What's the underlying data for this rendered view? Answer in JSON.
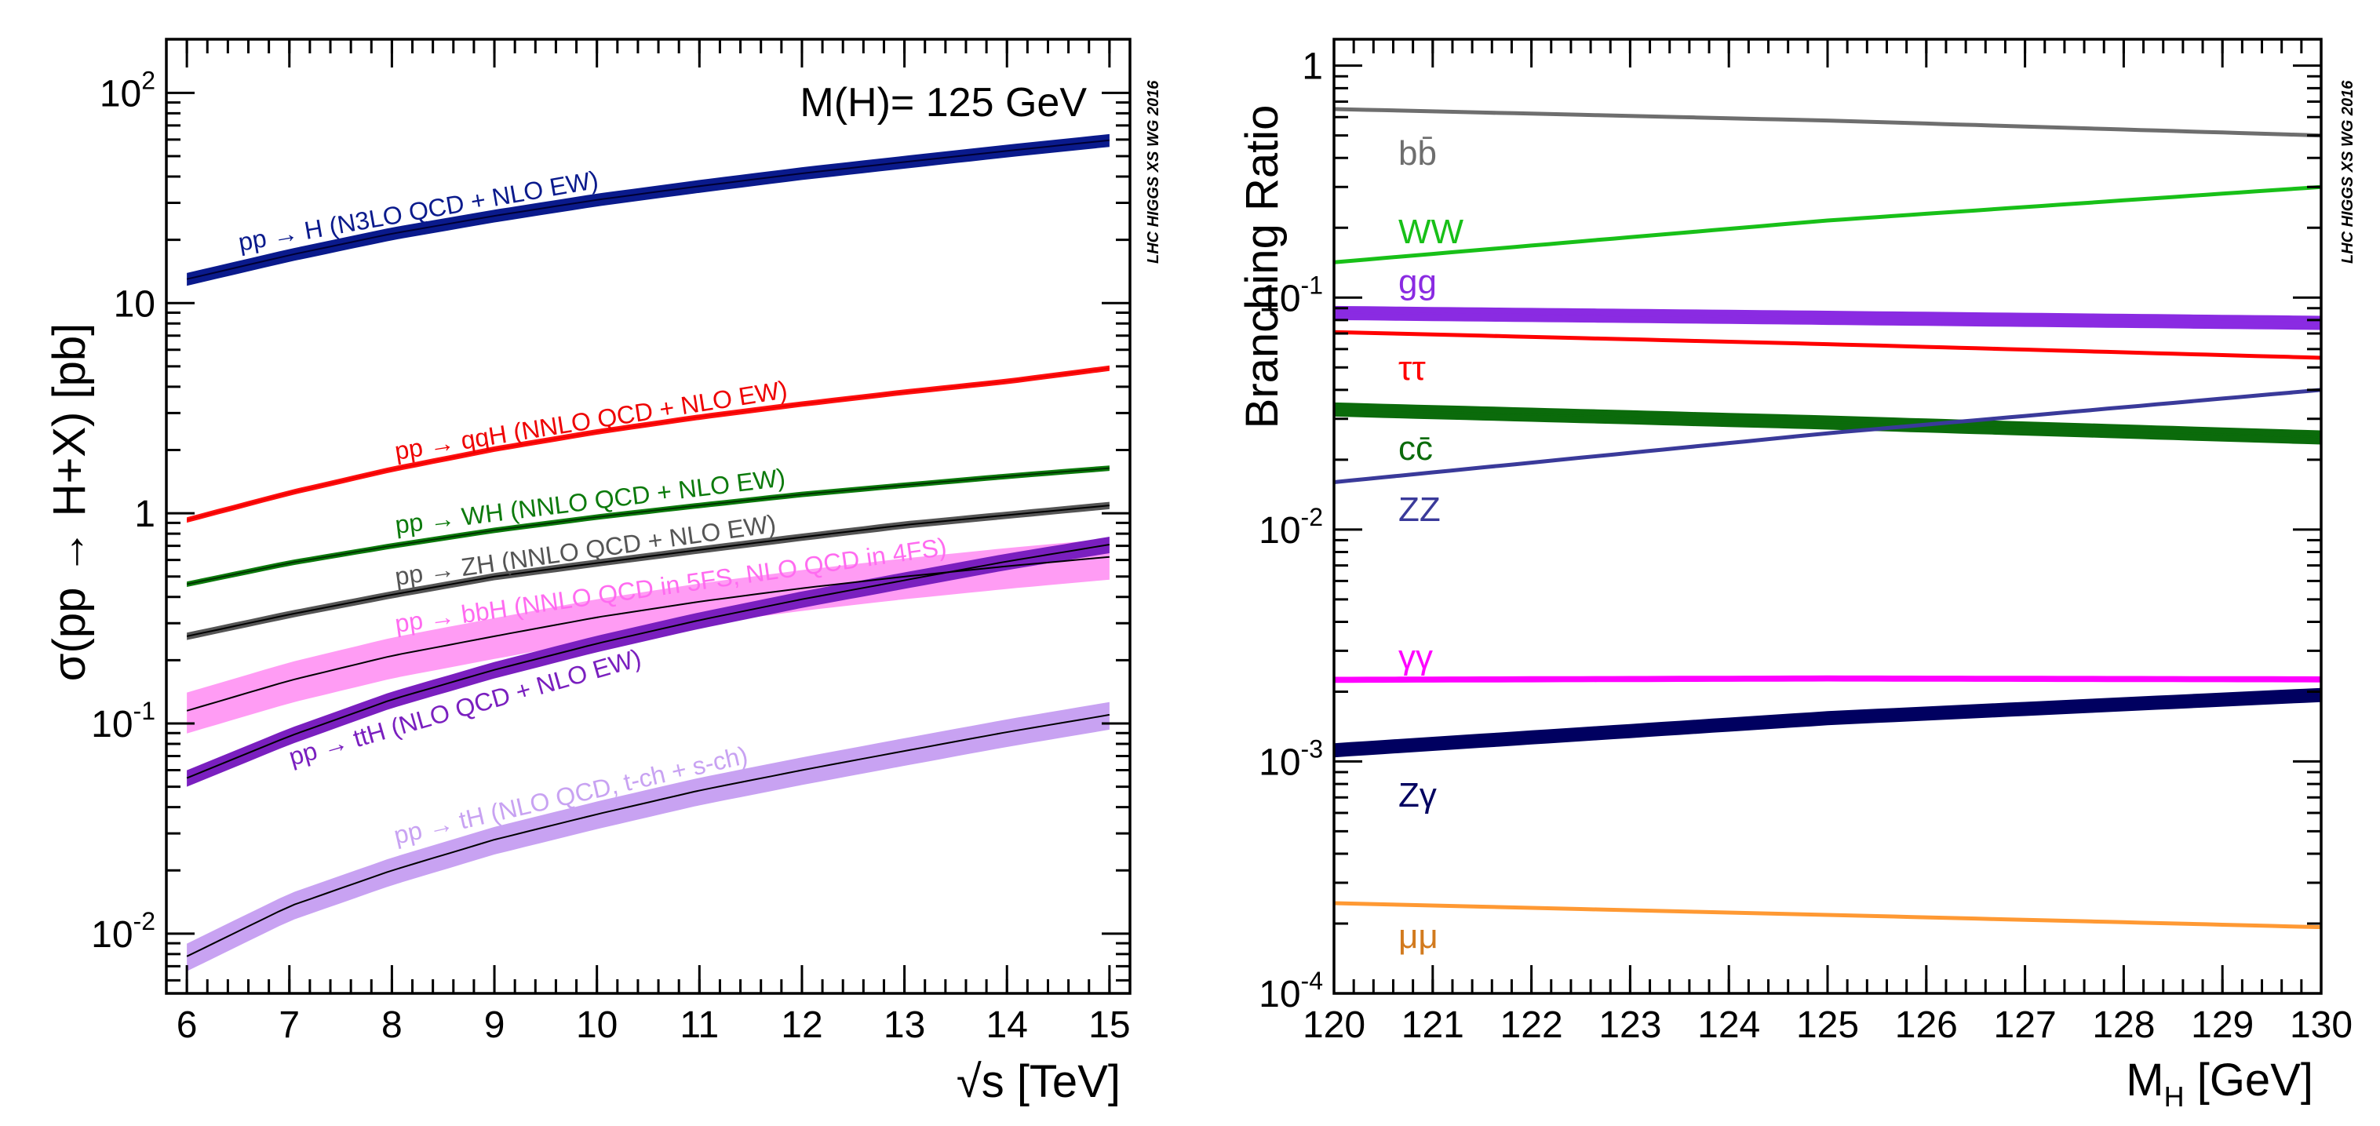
{
  "chart_data": [
    {
      "type": "line",
      "title": "M(H)= 125 GeV",
      "watermark": "LHC HIGGS XS WG 2016",
      "xlabel": "√s [TeV]",
      "ylabel": "σ(pp → H+X) [pb]",
      "yscale": "log",
      "xlim": [
        5.8,
        15.2
      ],
      "ylim": [
        0.0052,
        180
      ],
      "x_ticks": [
        "6",
        "7",
        "8",
        "9",
        "10",
        "11",
        "12",
        "13",
        "14",
        "15"
      ],
      "y_ticks": [
        {
          "base": "10",
          "exp": "2"
        },
        {
          "base": "10",
          "exp": ""
        },
        {
          "base": "1",
          "exp": ""
        },
        {
          "base": "10",
          "exp": "-1"
        },
        {
          "base": "10",
          "exp": "-2"
        }
      ],
      "series": [
        {
          "name": "pp → H (N3LO QCD + NLO EW)",
          "color": "#0a1a8c",
          "line_color": "#000033",
          "x": [
            6,
            7,
            8,
            9,
            10,
            11,
            12,
            13,
            14,
            15
          ],
          "values": [
            13.0,
            16.9,
            21.4,
            26.0,
            31.0,
            36.0,
            41.4,
            46.9,
            53.0,
            59.5
          ],
          "rel_band": 0.07
        },
        {
          "name": "pp → qqH (NNLO QCD + NLO EW)",
          "color": "#ff1010",
          "line_color": "#ee0000",
          "x": [
            6,
            7,
            8,
            9,
            10,
            11,
            12,
            13,
            14,
            15
          ],
          "values": [
            0.93,
            1.25,
            1.62,
            2.02,
            2.44,
            2.87,
            3.31,
            3.77,
            4.24,
            4.9
          ],
          "rel_band": 0.03
        },
        {
          "name": "pp → WH (NNLO QCD + NLO EW)",
          "color": "#0c7a0c",
          "line_color": "#003300",
          "x": [
            6,
            7,
            8,
            9,
            10,
            11,
            12,
            13,
            14,
            15
          ],
          "values": [
            0.46,
            0.58,
            0.7,
            0.83,
            0.96,
            1.09,
            1.23,
            1.36,
            1.5,
            1.64
          ],
          "rel_band": 0.03
        },
        {
          "name": "pp → ZH (NNLO QCD + NLO EW)",
          "color": "#555555",
          "line_color": "#000000",
          "x": [
            6,
            7,
            8,
            9,
            10,
            11,
            12,
            13,
            14,
            15
          ],
          "values": [
            0.26,
            0.33,
            0.41,
            0.5,
            0.58,
            0.67,
            0.77,
            0.88,
            0.98,
            1.09
          ],
          "rel_band": 0.04
        },
        {
          "name": "pp → bbH (NNLO QCD in 5FS, NLO QCD in 4FS)",
          "color": "#ff9cf4",
          "line_color": "#000000",
          "x": [
            6,
            7,
            8,
            9,
            10,
            11,
            12,
            13,
            14,
            15
          ],
          "values": [
            0.115,
            0.16,
            0.21,
            0.26,
            0.32,
            0.38,
            0.44,
            0.5,
            0.56,
            0.62
          ],
          "rel_band": 0.22
        },
        {
          "name": "pp → ttH (NLO QCD + NLO EW)",
          "color": "#7a1fbf",
          "line_color": "#000000",
          "x": [
            6,
            7,
            8,
            9,
            10,
            11,
            12,
            13,
            14,
            15
          ],
          "values": [
            0.055,
            0.087,
            0.13,
            0.18,
            0.24,
            0.31,
            0.39,
            0.48,
            0.59,
            0.71
          ],
          "rel_band": 0.09
        },
        {
          "name": "pp → tH (NLO QCD, t-ch + s-ch)",
          "color": "#c8a2f2",
          "line_color": "#000000",
          "x": [
            6,
            7,
            8,
            9,
            10,
            11,
            12,
            13,
            14,
            15
          ],
          "values": [
            0.0078,
            0.0135,
            0.02,
            0.028,
            0.037,
            0.048,
            0.06,
            0.074,
            0.091,
            0.11
          ],
          "rel_band": 0.15
        }
      ]
    },
    {
      "type": "line",
      "watermark": "LHC HIGGS XS WG 2016",
      "xlabel_main": "M",
      "xlabel_sub": "H",
      "xlabel_unit": " [GeV]",
      "ylabel": "Branching Ratio",
      "yscale": "log",
      "xlim": [
        120,
        130
      ],
      "ylim": [
        0.0001,
        1.3
      ],
      "x_ticks": [
        "120",
        "121",
        "122",
        "123",
        "124",
        "125",
        "126",
        "127",
        "128",
        "129",
        "130"
      ],
      "y_ticks": [
        {
          "base": "1",
          "exp": ""
        },
        {
          "base": "10",
          "exp": "-1"
        },
        {
          "base": "10",
          "exp": "-2"
        },
        {
          "base": "10",
          "exp": "-3"
        },
        {
          "base": "10",
          "exp": "-4"
        }
      ],
      "series": [
        {
          "name": "bb̄",
          "color": "#6e6e6e",
          "x": [
            120,
            125,
            130
          ],
          "values": [
            0.65,
            0.58,
            0.5
          ],
          "rel_band": 0.0
        },
        {
          "name": "WW",
          "color": "#18c018",
          "x": [
            120,
            125,
            130
          ],
          "values": [
            0.142,
            0.215,
            0.3
          ],
          "rel_band": 0.0
        },
        {
          "name": "gg",
          "color": "#8a2be2",
          "x": [
            120,
            125,
            130
          ],
          "values": [
            0.086,
            0.082,
            0.078
          ],
          "rel_band": 0.07
        },
        {
          "name": "ττ",
          "color": "#ff0000",
          "x": [
            120,
            125,
            130
          ],
          "values": [
            0.071,
            0.063,
            0.055
          ],
          "rel_band": 0.0
        },
        {
          "name": "cc̄",
          "color": "#0b6b0b",
          "x": [
            120,
            125,
            130
          ],
          "values": [
            0.033,
            0.029,
            0.025
          ],
          "rel_band": 0.07
        },
        {
          "name": "ZZ",
          "color": "#3a3a9a",
          "x": [
            120,
            125,
            130
          ],
          "values": [
            0.016,
            0.026,
            0.04
          ],
          "rel_band": 0.0
        },
        {
          "name": "γγ",
          "color": "#ff00ff",
          "x": [
            120,
            125,
            130
          ],
          "values": [
            0.00225,
            0.00228,
            0.00226
          ],
          "rel_band": 0.03
        },
        {
          "name": "Zγ",
          "color": "#000060",
          "x": [
            120,
            125,
            130
          ],
          "values": [
            0.00112,
            0.00154,
            0.00194
          ],
          "rel_band": 0.07
        },
        {
          "name": "μμ",
          "color": "#ff9933",
          "x": [
            120,
            125,
            130
          ],
          "values": [
            0.000245,
            0.000218,
            0.000193
          ],
          "rel_band": 0.0
        }
      ]
    }
  ]
}
